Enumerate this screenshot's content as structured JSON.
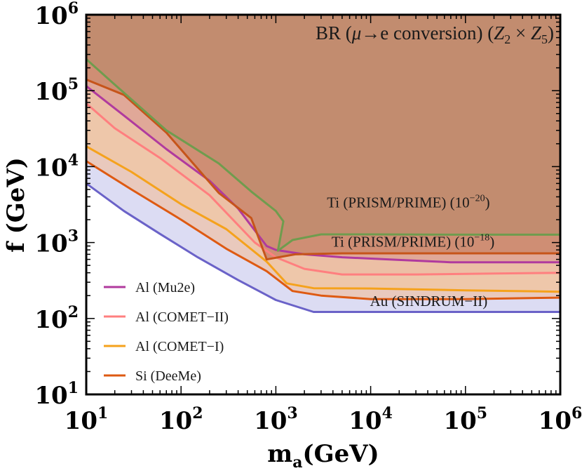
{
  "chart_data": {
    "type": "area",
    "title": {
      "prefix": "BR (",
      "greek": "μ",
      "arrow": "→e conversion) (",
      "z2": "Z",
      "z2sub": "2",
      "times": " × ",
      "z5": "Z",
      "z5sub": "5",
      "close": ")"
    },
    "xlabel": {
      "main": "m",
      "sub": "a",
      "rest": "(GeV)"
    },
    "ylabel": "f (GeV)",
    "x_scale": "log",
    "y_scale": "log",
    "xlim": [
      10,
      1000000
    ],
    "ylim": [
      10,
      1000000
    ],
    "x_ticks": [
      {
        "value": 10,
        "base": "10",
        "exp": "1"
      },
      {
        "value": 100,
        "base": "10",
        "exp": "2"
      },
      {
        "value": 1000,
        "base": "10",
        "exp": "3"
      },
      {
        "value": 10000,
        "base": "10",
        "exp": "4"
      },
      {
        "value": 100000,
        "base": "10",
        "exp": "5"
      },
      {
        "value": 1000000,
        "base": "10",
        "exp": "6"
      }
    ],
    "y_ticks": [
      {
        "value": 10,
        "base": "10",
        "exp": "1"
      },
      {
        "value": 100,
        "base": "10",
        "exp": "2"
      },
      {
        "value": 1000,
        "base": "10",
        "exp": "3"
      },
      {
        "value": 10000,
        "base": "10",
        "exp": "4"
      },
      {
        "value": 100000,
        "base": "10",
        "exp": "5"
      },
      {
        "value": 1000000,
        "base": "10",
        "exp": "6"
      }
    ],
    "series": [
      {
        "name": "Au (SINDRUM-II)",
        "color": "#6a62c8",
        "fill": "#dcdcf3",
        "points": [
          [
            10,
            6000
          ],
          [
            25,
            2600
          ],
          [
            60,
            1300
          ],
          [
            150,
            640
          ],
          [
            400,
            320
          ],
          [
            1000,
            175
          ],
          [
            2500,
            122
          ],
          [
            10000,
            122
          ],
          [
            100000,
            122
          ],
          [
            1000000,
            122
          ]
        ]
      },
      {
        "name": "Si (DeeMe)",
        "color": "#de5a12",
        "fill": "#e9c9bd",
        "points": [
          [
            10,
            11800
          ],
          [
            30,
            5000
          ],
          [
            100,
            2000
          ],
          [
            300,
            830
          ],
          [
            800,
            420
          ],
          [
            1500,
            230
          ],
          [
            3000,
            200
          ],
          [
            10000,
            180
          ],
          [
            100000,
            180
          ],
          [
            1000000,
            188
          ]
        ]
      },
      {
        "name": "Al (COMET-I)",
        "color": "#f5a21c",
        "fill": "#eec7aa",
        "points": [
          [
            10,
            18500
          ],
          [
            30,
            8500
          ],
          [
            100,
            3200
          ],
          [
            300,
            1500
          ],
          [
            800,
            560
          ],
          [
            1300,
            290
          ],
          [
            2500,
            250
          ],
          [
            10000,
            248
          ],
          [
            100000,
            235
          ],
          [
            1000000,
            225
          ]
        ]
      },
      {
        "name": "Al (COMET-II)",
        "color": "#ff7f7f",
        "fill": "#ecbfa5",
        "points": [
          [
            10,
            68000
          ],
          [
            20,
            32000
          ],
          [
            60,
            13000
          ],
          [
            200,
            4200
          ],
          [
            600,
            1000
          ],
          [
            1000,
            640
          ],
          [
            2000,
            450
          ],
          [
            5000,
            380
          ],
          [
            30000,
            380
          ],
          [
            200000,
            390
          ],
          [
            1000000,
            400
          ]
        ]
      },
      {
        "name": "Al (Mu2e)",
        "color": "#b03a9e",
        "fill": "#e0a898",
        "points": [
          [
            10,
            115000
          ],
          [
            25,
            47000
          ],
          [
            70,
            17000
          ],
          [
            200,
            6500
          ],
          [
            400,
            2800
          ],
          [
            800,
            900
          ],
          [
            1000,
            800
          ],
          [
            2000,
            700
          ],
          [
            5000,
            640
          ],
          [
            20000,
            590
          ],
          [
            70000,
            550
          ],
          [
            1000000,
            550
          ]
        ]
      },
      {
        "name": "Ti (PRISM/PRIME) (10^-18)",
        "color": "#c6541a",
        "fill": "#cf8e74",
        "points": [
          [
            10,
            140000
          ],
          [
            25,
            88000
          ],
          [
            70,
            28000
          ],
          [
            250,
            4500
          ],
          [
            550,
            2100
          ],
          [
            800,
            600
          ],
          [
            1600,
            700
          ],
          [
            5000,
            720
          ],
          [
            1000000,
            720
          ]
        ]
      },
      {
        "name": "Ti (PRISM/PRIME) (10^-20)",
        "color": "#6f9c4e",
        "fill": "#c28c6f",
        "points": [
          [
            10,
            260000
          ],
          [
            20,
            120000
          ],
          [
            70,
            30000
          ],
          [
            250,
            11000
          ],
          [
            550,
            4700
          ],
          [
            1000,
            2600
          ],
          [
            1200,
            1900
          ],
          [
            1050,
            780
          ],
          [
            1500,
            1080
          ],
          [
            3000,
            1280
          ],
          [
            10000,
            1280
          ],
          [
            100000,
            1270
          ],
          [
            1000000,
            1270
          ]
        ]
      }
    ],
    "annotations": [
      {
        "name": "Ti (PRISM/PRIME) (",
        "base": "10",
        "exp": "−20",
        "close": ")",
        "x": 25000,
        "y": 2900,
        "anchor": "middle"
      },
      {
        "name": "Ti (PRISM/PRIME) (",
        "base": "10",
        "exp": "−18",
        "close": ")",
        "x": 28000,
        "y": 880,
        "anchor": "middle"
      },
      {
        "name": "Au (SINDRUM−II)",
        "x": 41000,
        "y": 146,
        "anchor": "middle"
      }
    ],
    "legend": {
      "placement": "bottom-left",
      "entries": [
        {
          "label": "Al (Mu2e)",
          "color": "#b03a9e"
        },
        {
          "label": "Al (COMET−II)",
          "color": "#ff7f7f"
        },
        {
          "label": "Al (COMET−I)",
          "color": "#f5a21c"
        },
        {
          "label": "Si (DeeMe)",
          "color": "#de5a12"
        }
      ]
    }
  }
}
